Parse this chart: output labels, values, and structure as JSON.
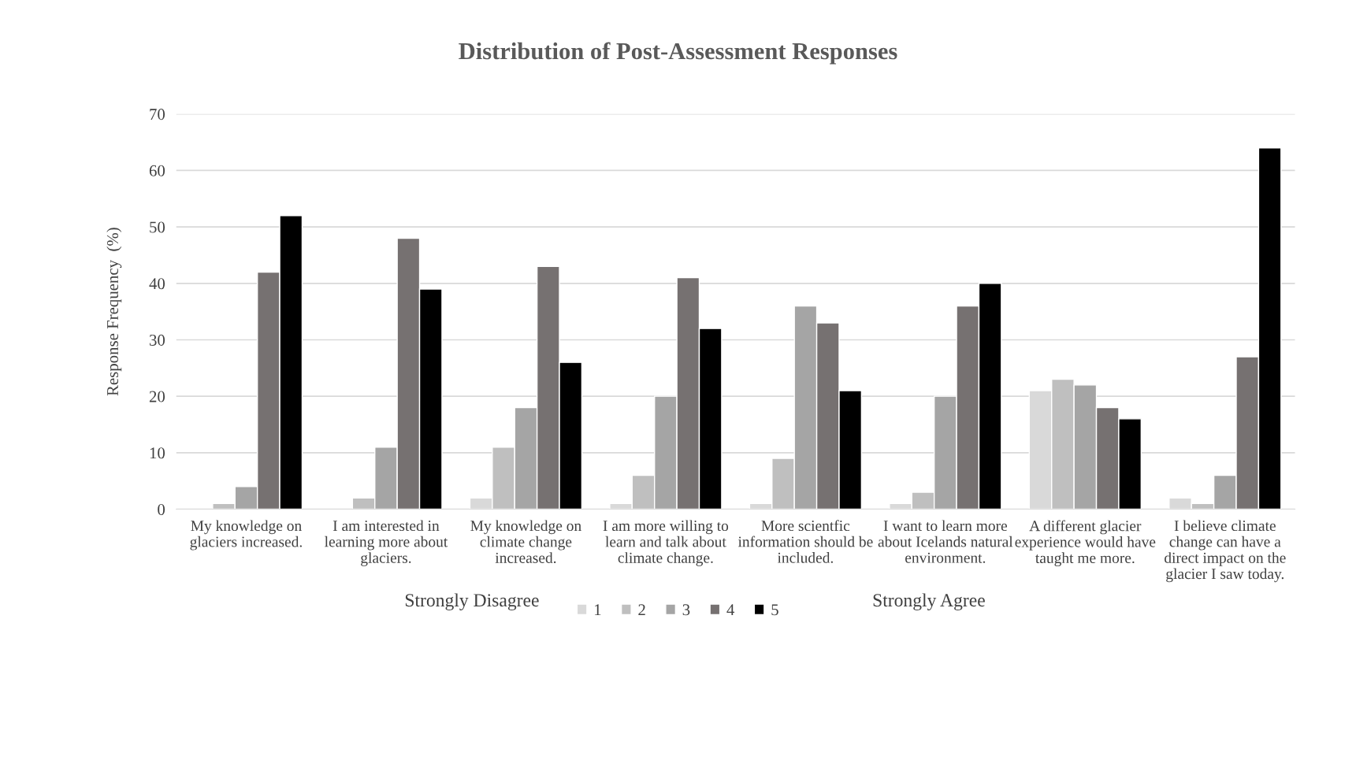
{
  "chart_data": {
    "type": "bar",
    "title": "Distribution of Post-Assessment Responses",
    "ylabel": "Response Frequency  (%)",
    "categories": [
      "My knowledge on\nglaciers increased.",
      "I am interested in\nlearning more about\nglaciers.",
      "My knowledge on\nclimate change\nincreased.",
      "I am more willing to\nlearn and talk about\nclimate change.",
      "More scientfic\ninformation should be\nincluded.",
      "I want to learn more\nabout Icelands natural\nenvironment.",
      "A different glacier\nexperience would have\ntaught me more.",
      "I believe climate\nchange can have a\ndirect impact on the\nglacier I saw today."
    ],
    "series": [
      {
        "name": "1",
        "color": "#d9d9d9",
        "values": [
          null,
          null,
          2,
          1,
          1,
          1,
          21,
          2
        ]
      },
      {
        "name": "2",
        "color": "#bfbfbf",
        "values": [
          1,
          2,
          11,
          6,
          9,
          3,
          23,
          1
        ]
      },
      {
        "name": "3",
        "color": "#a5a5a5",
        "values": [
          4,
          11,
          18,
          20,
          36,
          20,
          22,
          6
        ]
      },
      {
        "name": "4",
        "color": "#767171",
        "values": [
          42,
          48,
          43,
          41,
          33,
          36,
          18,
          27
        ]
      },
      {
        "name": "5",
        "color": "#000000",
        "values": [
          52,
          39,
          26,
          32,
          21,
          40,
          16,
          64
        ]
      }
    ],
    "ylim": [
      0,
      70
    ],
    "yticks": [
      0,
      10,
      20,
      30,
      40,
      50,
      60,
      70
    ],
    "grid": "y",
    "legend": "bottom",
    "annotations": [
      "Strongly Disagree",
      "Strongly Agree"
    ]
  }
}
